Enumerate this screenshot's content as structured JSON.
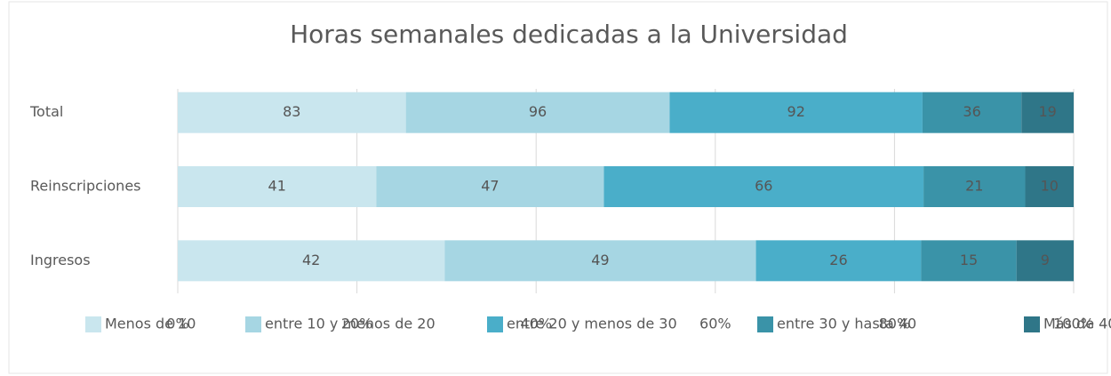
{
  "chart_data": {
    "type": "bar",
    "orientation": "horizontal",
    "stacked": "percent",
    "title": "Horas semanales dedicadas a la Universidad",
    "categories": [
      "Total",
      "Reinscripciones",
      "Ingresos"
    ],
    "series": [
      {
        "name": "Menos de 10",
        "color": "#c9e6ee",
        "values": [
          83,
          41,
          42
        ]
      },
      {
        "name": "entre 10 y menos de 20",
        "color": "#a6d6e3",
        "values": [
          96,
          47,
          49
        ]
      },
      {
        "name": "entre 20 y menos de 30",
        "color": "#4aaec9",
        "values": [
          92,
          66,
          26
        ]
      },
      {
        "name": "entre 30 y hasta 40",
        "color": "#3a93a8",
        "values": [
          36,
          21,
          15
        ]
      },
      {
        "name": "Más de 40",
        "color": "#2f7688",
        "values": [
          19,
          10,
          9
        ]
      }
    ],
    "xlim": [
      0,
      100
    ],
    "xticks": [
      {
        "value": 0,
        "label": "0%"
      },
      {
        "value": 20,
        "label": "20%"
      },
      {
        "value": 40,
        "label": "40%"
      },
      {
        "value": 60,
        "label": "60%"
      },
      {
        "value": 80,
        "label": "80%"
      },
      {
        "value": 100,
        "label": "100%"
      }
    ],
    "grid": true,
    "legend": "bottom"
  }
}
